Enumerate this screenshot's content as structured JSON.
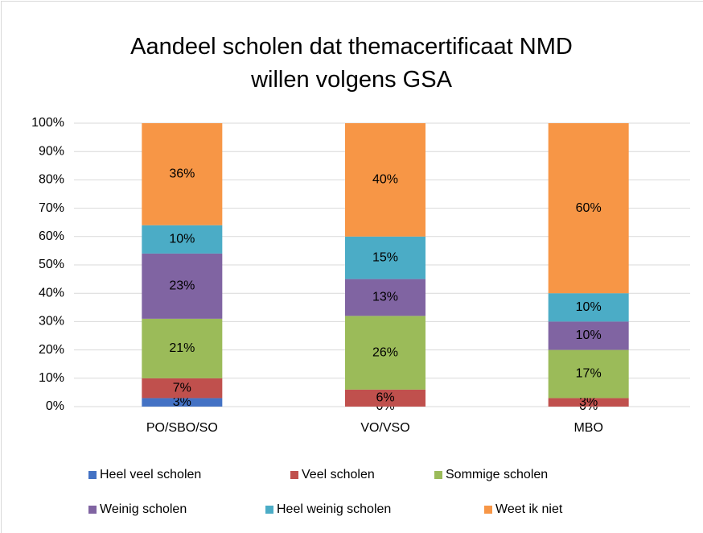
{
  "chart_data": {
    "type": "stacked_bar",
    "title": "Aandeel scholen dat themacertificaat NMD willen volgens GSA",
    "categories": [
      "PO/SBO/SO",
      "VO/VSO",
      "MBO"
    ],
    "series": [
      {
        "name": "Heel veel scholen",
        "color": "#4472c4",
        "values": [
          3,
          0,
          0
        ],
        "value_labels": [
          "3%",
          "0%",
          "0%"
        ]
      },
      {
        "name": "Veel scholen",
        "color": "#c0504d",
        "values": [
          7,
          6,
          3
        ],
        "value_labels": [
          "7%",
          "6%",
          "3%"
        ]
      },
      {
        "name": "Sommige scholen",
        "color": "#9bbb59",
        "values": [
          21,
          26,
          17
        ],
        "value_labels": [
          "21%",
          "26%",
          "17%"
        ]
      },
      {
        "name": "Weinig scholen",
        "color": "#8064a2",
        "values": [
          23,
          13,
          10
        ],
        "value_labels": [
          "23%",
          "13%",
          "10%"
        ]
      },
      {
        "name": "Heel weinig scholen",
        "color": "#4bacc6",
        "values": [
          10,
          15,
          10
        ],
        "value_labels": [
          "10%",
          "15%",
          "10%"
        ]
      },
      {
        "name": "Weet ik niet",
        "color": "#f79646",
        "values": [
          36,
          40,
          60
        ],
        "value_labels": [
          "36%",
          "40%",
          "60%"
        ]
      }
    ],
    "ylim": [
      0,
      100
    ],
    "yticks": [
      {
        "value": 0,
        "label": "0%"
      },
      {
        "value": 10,
        "label": "10%"
      },
      {
        "value": 20,
        "label": "20%"
      },
      {
        "value": 30,
        "label": "30%"
      },
      {
        "value": 40,
        "label": "40%"
      },
      {
        "value": 50,
        "label": "50%"
      },
      {
        "value": 60,
        "label": "60%"
      },
      {
        "value": 70,
        "label": "70%"
      },
      {
        "value": 80,
        "label": "80%"
      },
      {
        "value": 90,
        "label": "90%"
      },
      {
        "value": 100,
        "label": "100%"
      }
    ],
    "grid": true,
    "legend": "bottom"
  }
}
